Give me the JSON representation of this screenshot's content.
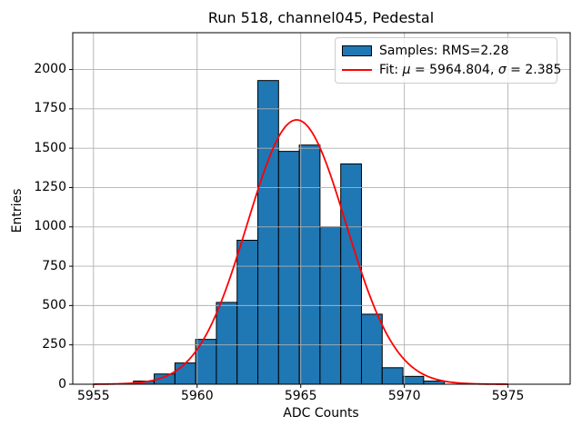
{
  "figure": {
    "title": "Run 518, channel045, Pedestal",
    "xlabel": "ADC Counts",
    "ylabel": "Entries"
  },
  "legend": {
    "samples_label": "Samples: RMS=2.28",
    "fit_label_prefix": "Fit: ",
    "fit_mu_symbol": "μ",
    "fit_mu_value": " = 5964.804, ",
    "fit_sigma_symbol": "σ",
    "fit_sigma_value": " = 2.385"
  },
  "chart_data": {
    "type": "bar",
    "subtype": "histogram_with_gaussian_fit",
    "title": "Run 518, channel045, Pedestal",
    "xlabel": "ADC Counts",
    "ylabel": "Entries",
    "bin_edges": [
      5956.93,
      5957.93,
      5958.93,
      5959.93,
      5960.93,
      5961.93,
      5962.93,
      5963.93,
      5964.93,
      5965.93,
      5966.93,
      5967.93,
      5968.93,
      5969.93,
      5970.93,
      5971.93
    ],
    "counts": [
      20,
      65,
      135,
      285,
      520,
      915,
      1930,
      1480,
      1520,
      1000,
      1400,
      445,
      105,
      50,
      20
    ],
    "samples_rms": 2.28,
    "fit": {
      "model": "gaussian",
      "mu": 5964.804,
      "sigma": 2.385,
      "amplitude": 1680,
      "x_min": 5955,
      "x_max": 5975
    },
    "xlim": [
      5954,
      5978
    ],
    "ylim": [
      0,
      2234
    ],
    "x_ticks": [
      5955,
      5960,
      5965,
      5970,
      5975
    ],
    "y_ticks": [
      0,
      250,
      500,
      750,
      1000,
      1250,
      1500,
      1750,
      2000
    ],
    "grid": true,
    "grid_above_bars": true,
    "legend_position": "upper right",
    "colors": {
      "bar_fill": "#1f77b4",
      "bar_edge": "#000000",
      "fit_line": "#ff0000",
      "grid": "#b0b0b0",
      "spine": "#000000",
      "legend_edge": "#cccccc"
    }
  }
}
